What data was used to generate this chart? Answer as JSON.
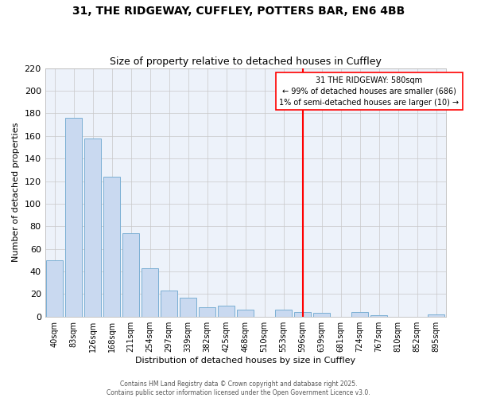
{
  "title_line1": "31, THE RIDGEWAY, CUFFLEY, POTTERS BAR, EN6 4BB",
  "title_line2": "Size of property relative to detached houses in Cuffley",
  "xlabel": "Distribution of detached houses by size in Cuffley",
  "ylabel": "Number of detached properties",
  "bar_labels": [
    "40sqm",
    "83sqm",
    "126sqm",
    "168sqm",
    "211sqm",
    "254sqm",
    "297sqm",
    "339sqm",
    "382sqm",
    "425sqm",
    "468sqm",
    "510sqm",
    "553sqm",
    "596sqm",
    "639sqm",
    "681sqm",
    "724sqm",
    "767sqm",
    "810sqm",
    "852sqm",
    "895sqm"
  ],
  "bar_values": [
    50,
    176,
    158,
    124,
    74,
    43,
    23,
    17,
    8,
    10,
    6,
    0,
    6,
    4,
    3,
    0,
    4,
    1,
    0,
    0,
    2
  ],
  "bar_color": "#c9d9f0",
  "bar_edge_color": "#7bafd4",
  "background_color": "#edf2fa",
  "grid_color": "#c8c8c8",
  "ylim": [
    0,
    220
  ],
  "yticks": [
    0,
    20,
    40,
    60,
    80,
    100,
    120,
    140,
    160,
    180,
    200,
    220
  ],
  "red_line_x": 13.0,
  "annotation_title": "31 THE RIDGEWAY: 580sqm",
  "annotation_line2": "← 99% of detached houses are smaller (686)",
  "annotation_line3": "1% of semi-detached houses are larger (10) →",
  "footer_line1": "Contains HM Land Registry data © Crown copyright and database right 2025.",
  "footer_line2": "Contains public sector information licensed under the Open Government Licence v3.0."
}
